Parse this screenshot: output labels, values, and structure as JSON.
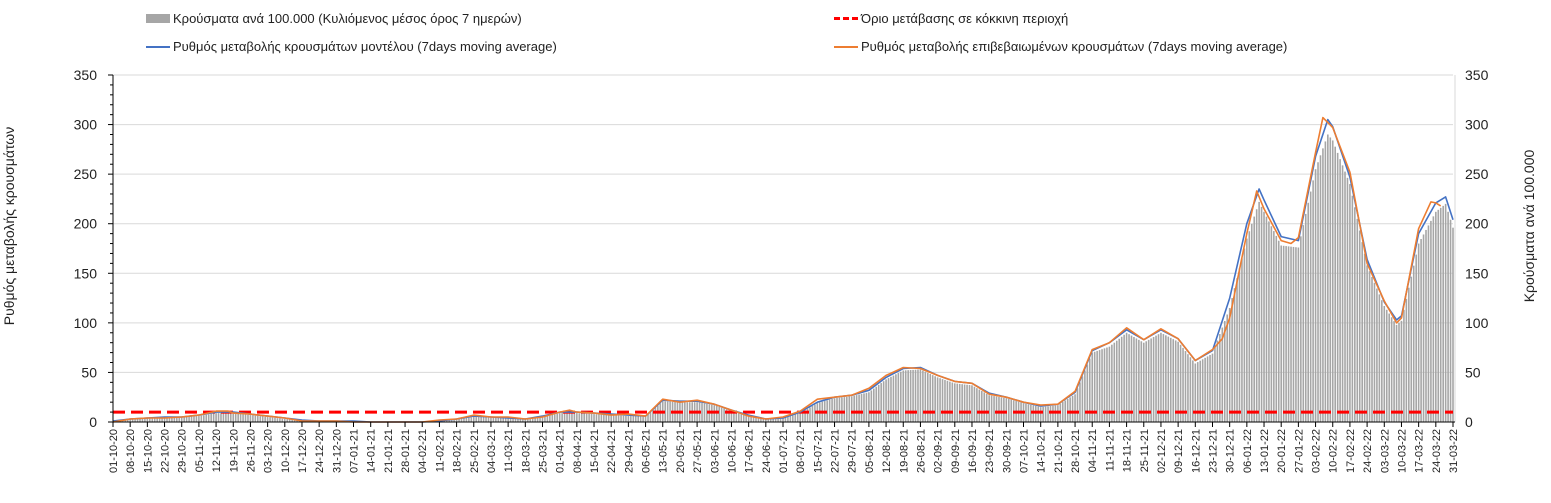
{
  "chart_data": {
    "type": "bar+line",
    "legend": {
      "bars": "Κρούσματα ανά 100.000 (Κυλιόμενος μέσος όρος 7 ημερών)",
      "threshold": "Όριο μετάβασης σε κόκκινη περιοχή",
      "model": "Ρυθμός μεταβολής κρουσμάτων μοντέλου (7days moving average)",
      "confirmed": "Ρυθμός μεταβολής επιβεβαιωμένων κρουσμάτων (7days moving average)"
    },
    "legend_placement": "top",
    "ylabel_left": "Ρυθμός μεταβολής κρουσμάτων",
    "ylabel_right": "Κρούσματα ανά 100.000",
    "ylim": [
      0,
      350
    ],
    "yticks": [
      "0",
      "50",
      "100",
      "150",
      "200",
      "250",
      "300",
      "350"
    ],
    "x_unit": "days since 01-10-20",
    "xlim": [
      0,
      546
    ],
    "x_tick_step_days": 7,
    "x_ticks": [
      "01-10-20",
      "08-10-20",
      "15-10-20",
      "22-10-20",
      "29-10-20",
      "05-11-20",
      "12-11-20",
      "19-11-20",
      "26-11-20",
      "03-12-20",
      "10-12-20",
      "17-12-20",
      "24-12-20",
      "31-12-20",
      "07-01-21",
      "14-01-21",
      "21-01-21",
      "28-01-21",
      "04-02-21",
      "11-02-21",
      "18-02-21",
      "25-02-21",
      "04-03-21",
      "11-03-21",
      "18-03-21",
      "25-03-21",
      "01-04-21",
      "08-04-21",
      "15-04-21",
      "22-04-21",
      "29-04-21",
      "06-05-21",
      "13-05-21",
      "20-05-21",
      "27-05-21",
      "03-06-21",
      "10-06-21",
      "17-06-21",
      "24-06-21",
      "01-07-21",
      "08-07-21",
      "15-07-21",
      "22-07-21",
      "29-07-21",
      "05-08-21",
      "12-08-21",
      "19-08-21",
      "26-08-21",
      "02-09-21",
      "09-09-21",
      "16-09-21",
      "23-09-21",
      "30-09-21",
      "07-10-21",
      "14-10-21",
      "21-10-21",
      "28-10-21",
      "04-11-21",
      "11-11-21",
      "18-11-21",
      "25-11-21",
      "02-12-21",
      "09-12-21",
      "16-12-21",
      "23-12-21",
      "30-12-21",
      "06-01-22",
      "13-01-22",
      "20-01-22",
      "27-01-22",
      "03-02-22",
      "10-02-22",
      "17-02-22",
      "24-02-22",
      "03-03-22",
      "10-03-22",
      "17-03-22",
      "24-03-22",
      "31-03-22"
    ],
    "threshold_value": 10,
    "series": [
      {
        "name": "model",
        "color": "#4472c4",
        "points": [
          [
            0,
            1
          ],
          [
            7,
            3
          ],
          [
            14,
            4
          ],
          [
            21,
            5
          ],
          [
            28,
            5
          ],
          [
            35,
            7
          ],
          [
            42,
            10
          ],
          [
            49,
            10
          ],
          [
            56,
            8
          ],
          [
            63,
            6
          ],
          [
            70,
            4
          ],
          [
            77,
            2
          ],
          [
            84,
            1
          ],
          [
            91,
            1
          ],
          [
            98,
            1
          ],
          [
            105,
            0
          ],
          [
            112,
            0
          ],
          [
            119,
            0
          ],
          [
            126,
            0
          ],
          [
            133,
            1
          ],
          [
            140,
            3
          ],
          [
            147,
            6
          ],
          [
            154,
            5
          ],
          [
            161,
            4
          ],
          [
            168,
            3
          ],
          [
            175,
            6
          ],
          [
            182,
            10
          ],
          [
            189,
            10
          ],
          [
            196,
            9
          ],
          [
            203,
            8
          ],
          [
            210,
            7
          ],
          [
            217,
            6
          ],
          [
            224,
            22
          ],
          [
            231,
            21
          ],
          [
            238,
            21
          ],
          [
            245,
            18
          ],
          [
            252,
            12
          ],
          [
            259,
            7
          ],
          [
            266,
            3
          ],
          [
            273,
            4
          ],
          [
            280,
            10
          ],
          [
            287,
            20
          ],
          [
            294,
            25
          ],
          [
            301,
            27
          ],
          [
            308,
            32
          ],
          [
            315,
            45
          ],
          [
            322,
            54
          ],
          [
            329,
            55
          ],
          [
            336,
            47
          ],
          [
            343,
            41
          ],
          [
            350,
            39
          ],
          [
            357,
            29
          ],
          [
            364,
            25
          ],
          [
            371,
            20
          ],
          [
            378,
            16
          ],
          [
            385,
            18
          ],
          [
            392,
            30
          ],
          [
            399,
            72
          ],
          [
            406,
            80
          ],
          [
            413,
            93
          ],
          [
            420,
            83
          ],
          [
            427,
            93
          ],
          [
            434,
            84
          ],
          [
            441,
            62
          ],
          [
            448,
            72
          ],
          [
            455,
            125
          ],
          [
            462,
            200
          ],
          [
            467,
            235
          ],
          [
            469,
            224
          ],
          [
            476,
            187
          ],
          [
            483,
            183
          ],
          [
            490,
            268
          ],
          [
            495,
            305
          ],
          [
            497,
            298
          ],
          [
            504,
            247
          ],
          [
            511,
            164
          ],
          [
            518,
            121
          ],
          [
            523,
            103
          ],
          [
            525,
            107
          ],
          [
            532,
            190
          ],
          [
            539,
            221
          ],
          [
            543,
            227
          ],
          [
            546,
            204
          ]
        ]
      },
      {
        "name": "confirmed",
        "color": "#ed7d31",
        "points": [
          [
            0,
            0
          ],
          [
            7,
            3
          ],
          [
            14,
            4
          ],
          [
            21,
            4
          ],
          [
            28,
            5
          ],
          [
            35,
            7
          ],
          [
            42,
            11
          ],
          [
            47,
            11
          ],
          [
            49,
            9
          ],
          [
            56,
            8
          ],
          [
            63,
            6
          ],
          [
            70,
            4
          ],
          [
            77,
            1
          ],
          [
            84,
            1
          ],
          [
            91,
            1
          ],
          [
            98,
            0
          ],
          [
            105,
            0
          ],
          [
            112,
            0
          ],
          [
            119,
            0
          ],
          [
            126,
            0
          ],
          [
            133,
            2
          ],
          [
            140,
            3
          ],
          [
            147,
            7
          ],
          [
            154,
            5
          ],
          [
            161,
            5
          ],
          [
            168,
            3
          ],
          [
            175,
            5
          ],
          [
            182,
            10
          ],
          [
            186,
            12
          ],
          [
            189,
            10
          ],
          [
            196,
            9
          ],
          [
            203,
            7
          ],
          [
            210,
            8
          ],
          [
            217,
            6
          ],
          [
            224,
            23
          ],
          [
            231,
            20
          ],
          [
            238,
            22
          ],
          [
            245,
            18
          ],
          [
            252,
            12
          ],
          [
            259,
            6
          ],
          [
            266,
            3
          ],
          [
            273,
            5
          ],
          [
            280,
            11
          ],
          [
            287,
            23
          ],
          [
            294,
            25
          ],
          [
            301,
            27
          ],
          [
            308,
            34
          ],
          [
            315,
            47
          ],
          [
            322,
            55
          ],
          [
            329,
            54
          ],
          [
            336,
            47
          ],
          [
            343,
            41
          ],
          [
            350,
            39
          ],
          [
            357,
            28
          ],
          [
            364,
            25
          ],
          [
            371,
            20
          ],
          [
            378,
            17
          ],
          [
            385,
            18
          ],
          [
            392,
            31
          ],
          [
            399,
            73
          ],
          [
            406,
            80
          ],
          [
            413,
            95
          ],
          [
            420,
            83
          ],
          [
            427,
            94
          ],
          [
            434,
            84
          ],
          [
            441,
            62
          ],
          [
            448,
            73
          ],
          [
            452,
            84
          ],
          [
            455,
            105
          ],
          [
            462,
            190
          ],
          [
            466,
            233
          ],
          [
            469,
            215
          ],
          [
            476,
            183
          ],
          [
            480,
            180
          ],
          [
            483,
            186
          ],
          [
            490,
            272
          ],
          [
            493,
            307
          ],
          [
            497,
            297
          ],
          [
            504,
            252
          ],
          [
            511,
            160
          ],
          [
            518,
            122
          ],
          [
            523,
            100
          ],
          [
            525,
            105
          ],
          [
            532,
            195
          ],
          [
            537,
            222
          ],
          [
            539,
            221
          ],
          [
            541,
            218
          ]
        ]
      },
      {
        "name": "bars",
        "color": "#a6a6a6",
        "points": [
          [
            0,
            1
          ],
          [
            7,
            3
          ],
          [
            14,
            4
          ],
          [
            21,
            4
          ],
          [
            28,
            5
          ],
          [
            35,
            6
          ],
          [
            42,
            9
          ],
          [
            49,
            9
          ],
          [
            56,
            7
          ],
          [
            63,
            5
          ],
          [
            70,
            3
          ],
          [
            77,
            2
          ],
          [
            84,
            1
          ],
          [
            91,
            1
          ],
          [
            98,
            0
          ],
          [
            105,
            0
          ],
          [
            112,
            0
          ],
          [
            119,
            0
          ],
          [
            126,
            0
          ],
          [
            133,
            1
          ],
          [
            140,
            3
          ],
          [
            147,
            5
          ],
          [
            154,
            5
          ],
          [
            161,
            4
          ],
          [
            168,
            3
          ],
          [
            175,
            5
          ],
          [
            182,
            9
          ],
          [
            189,
            9
          ],
          [
            196,
            8
          ],
          [
            203,
            7
          ],
          [
            210,
            6
          ],
          [
            217,
            6
          ],
          [
            224,
            21
          ],
          [
            231,
            20
          ],
          [
            238,
            20
          ],
          [
            245,
            17
          ],
          [
            252,
            11
          ],
          [
            259,
            6
          ],
          [
            266,
            3
          ],
          [
            273,
            4
          ],
          [
            280,
            9
          ],
          [
            287,
            19
          ],
          [
            294,
            24
          ],
          [
            301,
            26
          ],
          [
            308,
            30
          ],
          [
            315,
            43
          ],
          [
            322,
            52
          ],
          [
            329,
            53
          ],
          [
            336,
            45
          ],
          [
            343,
            39
          ],
          [
            350,
            37
          ],
          [
            357,
            27
          ],
          [
            364,
            24
          ],
          [
            371,
            19
          ],
          [
            378,
            15
          ],
          [
            385,
            17
          ],
          [
            392,
            28
          ],
          [
            399,
            70
          ],
          [
            406,
            76
          ],
          [
            413,
            90
          ],
          [
            420,
            80
          ],
          [
            427,
            90
          ],
          [
            434,
            81
          ],
          [
            441,
            59
          ],
          [
            448,
            69
          ],
          [
            455,
            115
          ],
          [
            462,
            185
          ],
          [
            467,
            222
          ],
          [
            469,
            212
          ],
          [
            476,
            178
          ],
          [
            483,
            176
          ],
          [
            490,
            255
          ],
          [
            495,
            290
          ],
          [
            497,
            284
          ],
          [
            504,
            240
          ],
          [
            511,
            158
          ],
          [
            518,
            117
          ],
          [
            523,
            98
          ],
          [
            525,
            102
          ],
          [
            532,
            180
          ],
          [
            539,
            212
          ],
          [
            543,
            220
          ],
          [
            546,
            196
          ]
        ]
      }
    ]
  }
}
